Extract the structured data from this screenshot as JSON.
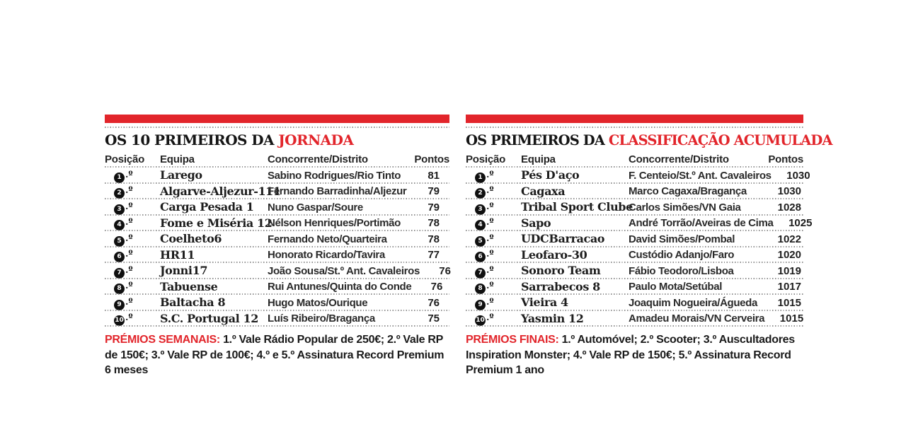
{
  "colors": {
    "accent_red": "#e2252b"
  },
  "jornada": {
    "title_prefix": "OS 10 PRIMEIROS DA",
    "title_accent": "JORNADA",
    "headers": {
      "posicao": "Posição",
      "equipa": "Equipa",
      "concorrente": "Concorrente/Distrito",
      "pontos": "Pontos"
    },
    "rows": [
      {
        "num": "1",
        "ord": ".º",
        "equipa": "Larego",
        "concorrente": "Sabino Rodrigues/Rio Tinto",
        "pontos": "81"
      },
      {
        "num": "2",
        "ord": ".º",
        "equipa": "Algarve-Aljezur-111",
        "concorrente": "Fernando Barradinha/Aljezur",
        "pontos": "79"
      },
      {
        "num": "3",
        "ord": ".º",
        "equipa": "Carga Pesada 1",
        "concorrente": "Nuno Gaspar/Soure",
        "pontos": "79"
      },
      {
        "num": "4",
        "ord": ".º",
        "equipa": "Fome e Miséria 12",
        "concorrente": "Nélson Henriques/Portimão",
        "pontos": "78"
      },
      {
        "num": "5",
        "ord": ".º",
        "equipa": "Coelheto6",
        "concorrente": "Fernando Neto/Quarteira",
        "pontos": "78"
      },
      {
        "num": "6",
        "ord": ".º",
        "equipa": "HR11",
        "concorrente": "Honorato Ricardo/Tavira",
        "pontos": "77"
      },
      {
        "num": "7",
        "ord": ".º",
        "equipa": "Jonni17",
        "concorrente": "João Sousa/St.º Ant. Cavaleiros",
        "pontos": "76"
      },
      {
        "num": "8",
        "ord": ".º",
        "equipa": "Tabuense",
        "concorrente": "Rui Antunes/Quinta do Conde",
        "pontos": "76"
      },
      {
        "num": "9",
        "ord": ".º",
        "equipa": "Baltacha 8",
        "concorrente": "Hugo Matos/Ourique",
        "pontos": "76"
      },
      {
        "num": "10",
        "ord": ".º",
        "equipa": "S.C. Portugal 12",
        "concorrente": "Luís Ribeiro/Bragança",
        "pontos": "75"
      }
    ],
    "footer_label": "PRÉMIOS SEMANAIS:",
    "footer_text": "1.º Vale Rádio Popular de 250€; 2.º Vale RP de 150€; 3.º Vale RP de 100€; 4.º e 5.º Assinatura Record Premium 6 meses"
  },
  "classificacao": {
    "title_prefix": "OS PRIMEIROS DA",
    "title_accent": "CLASSIFICAÇÃO ACUMULADA",
    "headers": {
      "posicao": "Posição",
      "equipa": "Equipa",
      "concorrente": "Concorrente/Distrito",
      "pontos": "Pontos"
    },
    "rows": [
      {
        "num": "1",
        "ord": ".º",
        "equipa": "Pés D'aço",
        "concorrente": "F. Centeio/St.º Ant. Cavaleiros",
        "pontos": "1030"
      },
      {
        "num": "2",
        "ord": ".º",
        "equipa": "Cagaxa",
        "concorrente": "Marco Cagaxa/Bragança",
        "pontos": "1030"
      },
      {
        "num": "3",
        "ord": ".º",
        "equipa": "Tribal Sport Clube",
        "concorrente": "Carlos Simões/VN Gaia",
        "pontos": "1028"
      },
      {
        "num": "4",
        "ord": ".º",
        "equipa": "Sapo",
        "concorrente": "André Torrão/Aveiras de Cima",
        "pontos": "1025"
      },
      {
        "num": "5",
        "ord": ".º",
        "equipa": "UDCBarracao",
        "concorrente": "David Simões/Pombal",
        "pontos": "1022"
      },
      {
        "num": "6",
        "ord": ".º",
        "equipa": "Leofaro-30",
        "concorrente": "Custódio Adanjo/Faro",
        "pontos": "1020"
      },
      {
        "num": "7",
        "ord": ".º",
        "equipa": "Sonoro Team",
        "concorrente": "Fábio Teodoro/Lisboa",
        "pontos": "1019"
      },
      {
        "num": "8",
        "ord": ".º",
        "equipa": "Sarrabecos 8",
        "concorrente": "Paulo Mota/Setúbal",
        "pontos": "1017"
      },
      {
        "num": "9",
        "ord": ".º",
        "equipa": "Vieira 4",
        "concorrente": "Joaquim Nogueira/Águeda",
        "pontos": "1015"
      },
      {
        "num": "10",
        "ord": ".º",
        "equipa": "Yasmin 12",
        "concorrente": "Amadeu Morais/VN Cerveira",
        "pontos": "1015"
      }
    ],
    "footer_label": "PRÉMIOS FINAIS:",
    "footer_text": "1.º Automóvel; 2.º Scooter; 3.º Auscultadores Inspiration Monster; 4.º Vale RP de 150€; 5.º Assinatura Record Premium 1 ano"
  }
}
